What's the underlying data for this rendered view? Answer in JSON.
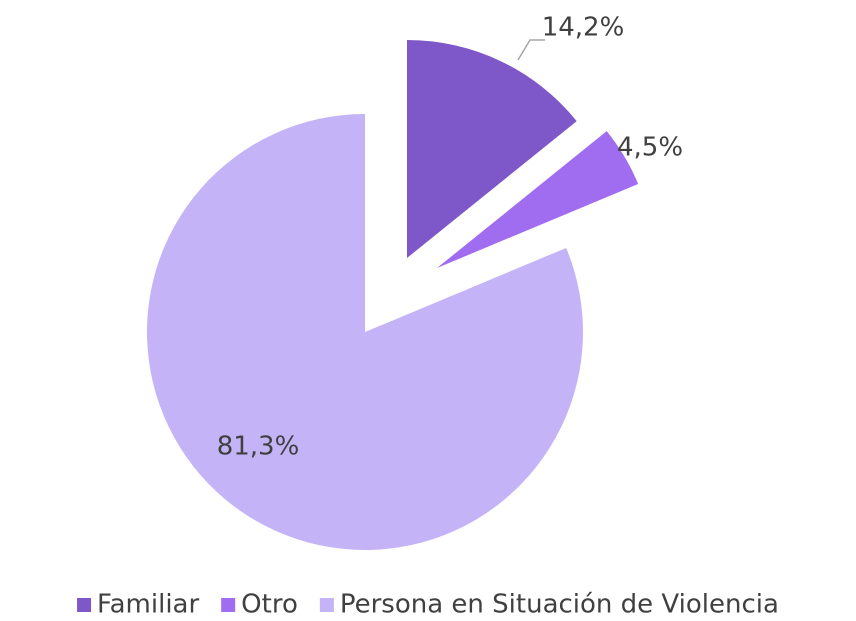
{
  "chart_data": {
    "type": "pie",
    "categories": [
      "Familiar",
      "Otro",
      "Persona en Situación de Violencia"
    ],
    "values": [
      14.2,
      4.5,
      81.3
    ],
    "value_labels": [
      "14,2%",
      "4,5%",
      "81,3%"
    ],
    "colors": [
      "#7e57c8",
      "#a06cf0",
      "#c5b3f7"
    ],
    "legend": "bottom"
  }
}
